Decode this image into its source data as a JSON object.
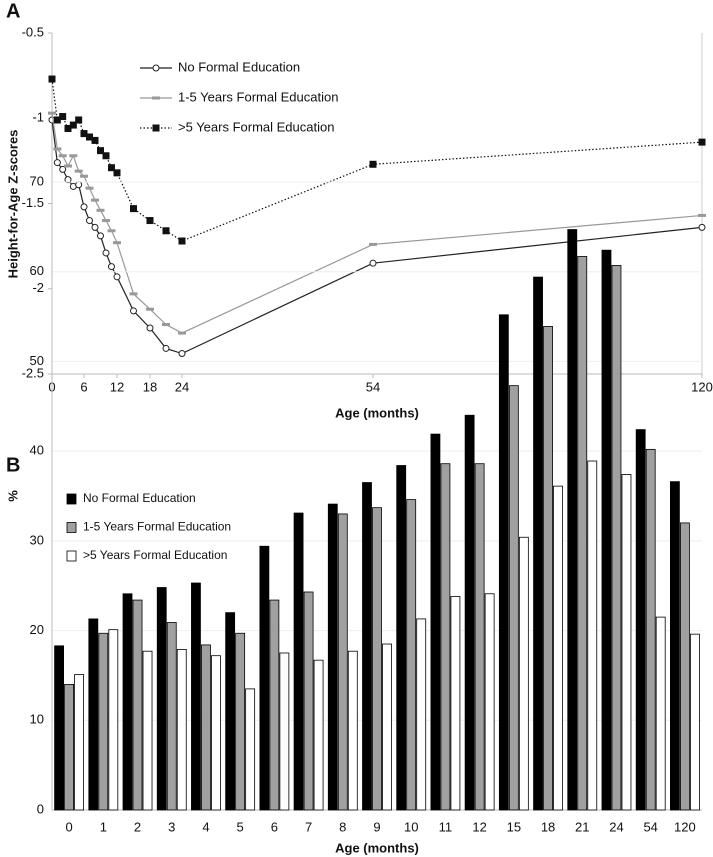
{
  "chart_data": [
    {
      "type": "line",
      "panel_label": "A",
      "ylabel": "Height-for-Age Z-scores",
      "xlabel": "Age (months)",
      "x": [
        0,
        1,
        2,
        3,
        4,
        5,
        6,
        7,
        8,
        9,
        10,
        11,
        12,
        15,
        18,
        21,
        24,
        54,
        120
      ],
      "xlim": [
        0,
        120
      ],
      "xticks": [
        0,
        6,
        12,
        18,
        24,
        54,
        120
      ],
      "ylim": [
        -2.5,
        -0.5
      ],
      "yticks": [
        -2.5,
        -2,
        -1.5,
        -1,
        -0.5
      ],
      "series": [
        {
          "name": "No Formal Education",
          "color": "#222222",
          "marker": "circle",
          "linestyle": "solid",
          "values": [
            -1.01,
            -1.26,
            -1.3,
            -1.36,
            -1.4,
            -1.39,
            -1.52,
            -1.6,
            -1.64,
            -1.69,
            -1.79,
            -1.87,
            -1.93,
            -2.13,
            -2.23,
            -2.35,
            -2.38,
            -1.85,
            -1.64
          ]
        },
        {
          "name": "1-5 Years Formal Education",
          "color": "#999999",
          "marker": "dash",
          "linestyle": "solid",
          "values": [
            -0.97,
            -1.18,
            -1.22,
            -1.28,
            -1.22,
            -1.31,
            -1.34,
            -1.41,
            -1.48,
            -1.54,
            -1.6,
            -1.66,
            -1.73,
            -2.03,
            -2.12,
            -2.21,
            -2.26,
            -1.74,
            -1.57
          ]
        },
        {
          "name": ">5 Years Formal Education",
          "color": "#111111",
          "marker": "square",
          "linestyle": "dotted",
          "values": [
            -0.77,
            -1.01,
            -0.99,
            -1.06,
            -1.04,
            -1.01,
            -1.09,
            -1.11,
            -1.13,
            -1.19,
            -1.22,
            -1.29,
            -1.32,
            -1.53,
            -1.6,
            -1.66,
            -1.72,
            -1.27,
            -1.14
          ]
        }
      ]
    },
    {
      "type": "bar",
      "panel_label": "B",
      "ylabel": "%",
      "xlabel": "Age (months)",
      "categories": [
        "0",
        "1",
        "2",
        "3",
        "4",
        "5",
        "6",
        "7",
        "8",
        "9",
        "10",
        "11",
        "12",
        "15",
        "18",
        "21",
        "24",
        "54",
        "120"
      ],
      "ylim": [
        0,
        70
      ],
      "yticks": [
        0,
        10,
        20,
        30,
        40,
        50,
        60,
        70
      ],
      "grid": true,
      "series": [
        {
          "name": "No Formal Education",
          "color": "#000000",
          "values": [
            18.3,
            21.3,
            24.1,
            24.8,
            25.3,
            22.0,
            29.4,
            33.1,
            34.1,
            36.5,
            38.4,
            41.9,
            44.0,
            55.2,
            59.4,
            64.7,
            62.4,
            42.4,
            36.6
          ]
        },
        {
          "name": "1-5 Years Formal Education",
          "color": "#a0a0a0",
          "values": [
            14.0,
            19.7,
            23.4,
            20.9,
            18.4,
            19.7,
            23.4,
            24.3,
            33.0,
            33.7,
            34.6,
            38.6,
            38.6,
            47.3,
            53.9,
            61.7,
            60.7,
            40.2,
            32.0
          ]
        },
        {
          "name": ">5 Years Formal Education",
          "color": "#ffffff",
          "values": [
            15.1,
            20.1,
            17.7,
            17.9,
            17.2,
            13.5,
            17.5,
            16.7,
            17.7,
            18.5,
            21.3,
            23.8,
            24.1,
            30.4,
            36.1,
            38.9,
            37.4,
            21.5,
            19.6
          ]
        }
      ]
    }
  ]
}
